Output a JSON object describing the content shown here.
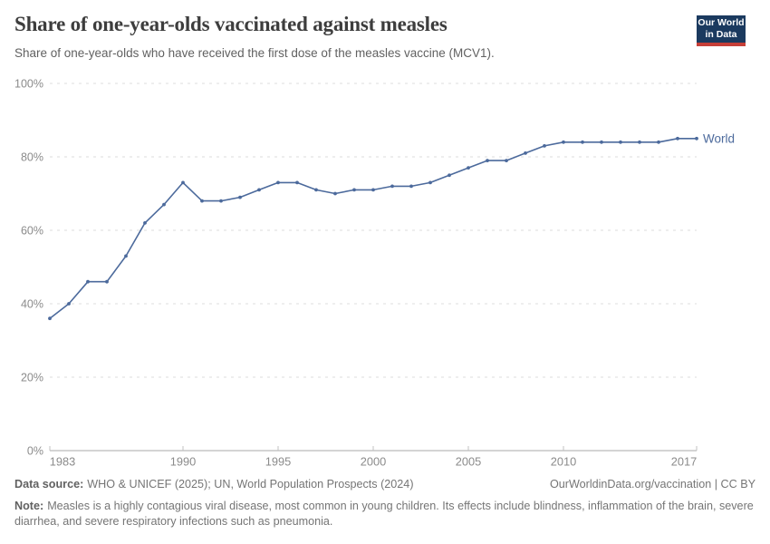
{
  "header": {
    "title": "Share of one-year-olds vaccinated against measles",
    "subtitle": "Share of one-year-olds who have received the first dose of the measles vaccine (MCV1).",
    "logo": {
      "line1": "Our World",
      "line2": "in Data"
    }
  },
  "chart_data": {
    "type": "line",
    "title": "Share of one-year-olds vaccinated against measles",
    "xlabel": "",
    "ylabel": "",
    "ylim": [
      0,
      100
    ],
    "yticks": [
      0,
      20,
      40,
      60,
      80,
      100
    ],
    "ytick_suffix": "%",
    "xticks": [
      1983,
      1990,
      1995,
      2000,
      2005,
      2010,
      2017
    ],
    "xlim": [
      1983,
      2017
    ],
    "grid": "horizontal-dashed",
    "legend_position": "end-of-line",
    "x": [
      1983,
      1984,
      1985,
      1986,
      1987,
      1988,
      1989,
      1990,
      1991,
      1992,
      1993,
      1994,
      1995,
      1996,
      1997,
      1998,
      1999,
      2000,
      2001,
      2002,
      2003,
      2004,
      2005,
      2006,
      2007,
      2008,
      2009,
      2010,
      2011,
      2012,
      2013,
      2014,
      2015,
      2016,
      2017
    ],
    "series": [
      {
        "name": "World",
        "values": [
          36,
          40,
          46,
          46,
          53,
          62,
          67,
          73,
          68,
          68,
          69,
          71,
          73,
          73,
          71,
          70,
          71,
          71,
          72,
          72,
          73,
          75,
          77,
          79,
          79,
          81,
          83,
          84,
          84,
          84,
          84,
          84,
          84,
          85,
          85
        ]
      }
    ]
  },
  "colors": {
    "line": "#4C6A9C",
    "series_label": "#4C6A9C",
    "grid": "#dcdcdc",
    "axis": "#a8a8a8",
    "tick": "#c0c0c0",
    "tick_label": "#8b8b8b",
    "logo_bg": "#1b3a5f",
    "logo_accent": "#c63f38"
  },
  "footer": {
    "datasource_label": "Data source:",
    "datasource": "WHO & UNICEF (2025); UN, World Population Prospects (2024)",
    "attribution": "OurWorldinData.org/vaccination | CC BY",
    "note_label": "Note:",
    "note": "Measles is a highly contagious viral disease, most common in young children. Its effects include blindness, inflammation of the brain, severe diarrhea, and severe respiratory infections such as pneumonia."
  }
}
